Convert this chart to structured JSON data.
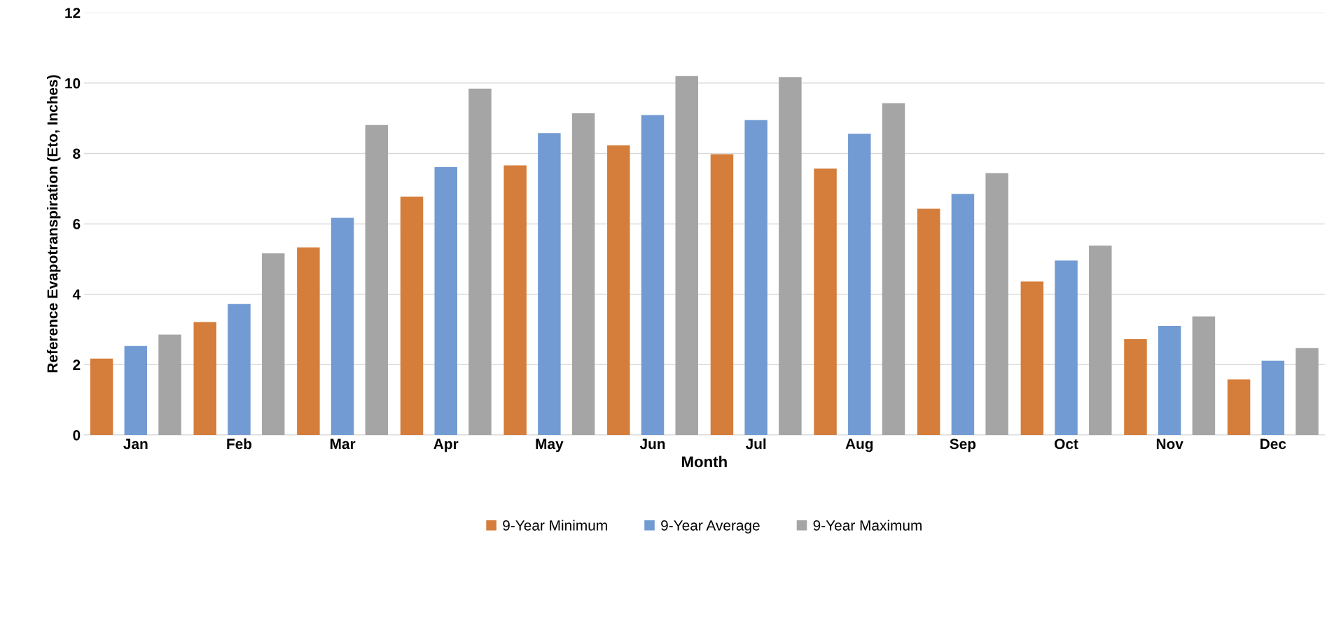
{
  "chart_data": {
    "type": "bar",
    "xlabel": "Month",
    "ylabel": "Reference Evapotranspiration (Eto, Inches)",
    "categories": [
      "Jan",
      "Feb",
      "Mar",
      "Apr",
      "May",
      "Jun",
      "Jul",
      "Aug",
      "Sep",
      "Oct",
      "Nov",
      "Dec"
    ],
    "series": [
      {
        "name": "9-Year Minimum",
        "color": "#d57d3a",
        "values": [
          2.17,
          3.21,
          5.33,
          6.77,
          7.66,
          8.23,
          7.98,
          7.57,
          6.43,
          4.36,
          2.72,
          1.58
        ]
      },
      {
        "name": "9-Year Average",
        "color": "#729bd3",
        "values": [
          2.53,
          3.72,
          6.17,
          7.61,
          8.58,
          9.09,
          8.95,
          8.56,
          6.85,
          4.96,
          3.1,
          2.11
        ]
      },
      {
        "name": "9-Year Maximum",
        "color": "#a5a5a5",
        "values": [
          2.85,
          5.16,
          8.81,
          9.84,
          9.14,
          10.2,
          10.17,
          9.43,
          7.44,
          5.38,
          3.37,
          2.47
        ]
      }
    ],
    "ylim": [
      0,
      12
    ],
    "yticks": [
      0,
      2,
      4,
      6,
      8,
      10,
      12
    ],
    "grid": "y",
    "legend": "bottom"
  }
}
